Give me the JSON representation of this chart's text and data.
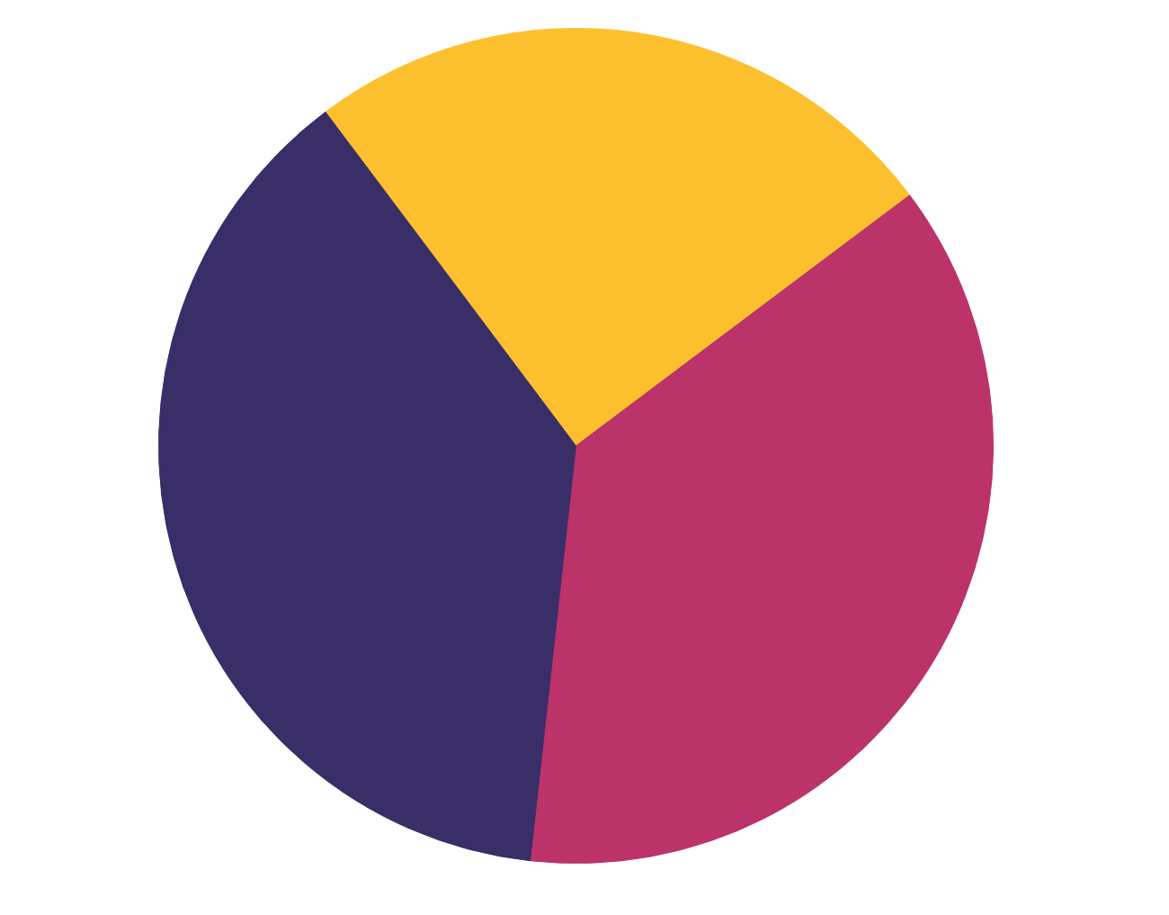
{
  "chart_data": {
    "type": "pie",
    "categories": [
      null,
      null,
      null
    ],
    "values": [
      25,
      37,
      38
    ],
    "colors": [
      "#fcc02e",
      "#bb3369",
      "#3a2e69"
    ]
  }
}
